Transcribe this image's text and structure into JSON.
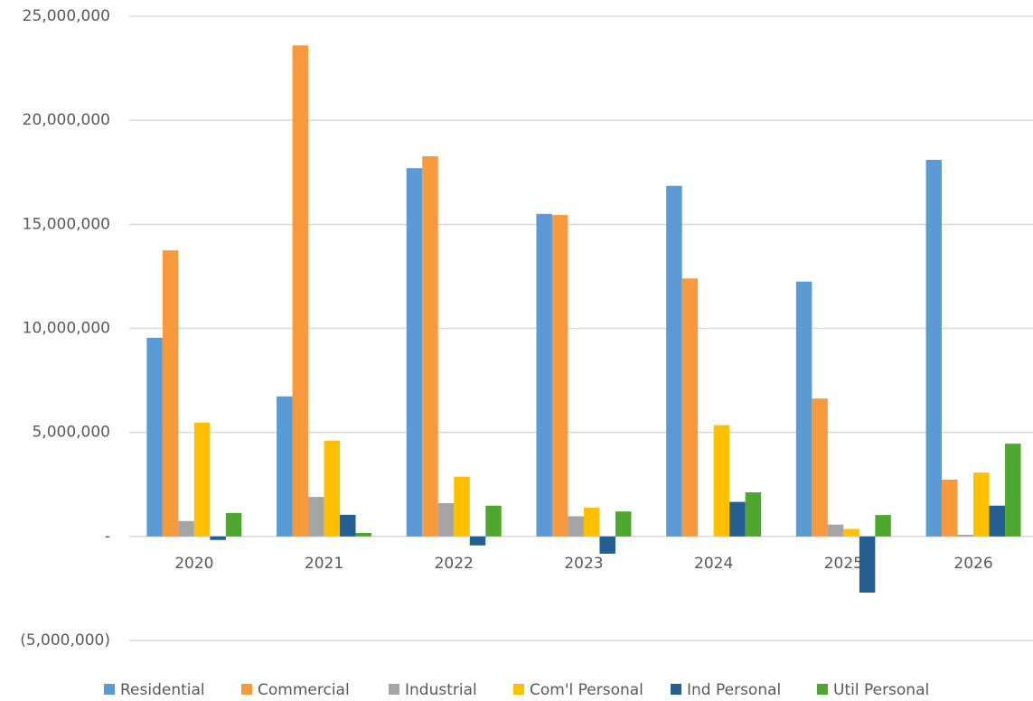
{
  "chart_data": {
    "type": "bar",
    "categories": [
      "2020",
      "2021",
      "2022",
      "2023",
      "2024",
      "2025",
      "2026"
    ],
    "series": [
      {
        "name": "Residential",
        "color": "#5b9bd5",
        "values": [
          9550000,
          6730000,
          17700000,
          15500000,
          16850000,
          12250000,
          18100000
        ]
      },
      {
        "name": "Commercial",
        "color": "#f79a3e",
        "values": [
          13750000,
          23600000,
          18270000,
          15450000,
          12400000,
          6630000,
          2730000
        ]
      },
      {
        "name": "Industrial",
        "color": "#a5a5a5",
        "values": [
          740000,
          1900000,
          1600000,
          970000,
          0,
          570000,
          80000
        ]
      },
      {
        "name": "Com'l Personal",
        "color": "#ffc000",
        "values": [
          5470000,
          4600000,
          2870000,
          1380000,
          5350000,
          360000,
          3070000
        ]
      },
      {
        "name": "Ind Personal",
        "color": "#255e91",
        "values": [
          -170000,
          1040000,
          -430000,
          -830000,
          1660000,
          -2700000,
          1480000
        ]
      },
      {
        "name": "Util Personal",
        "color": "#4ea72e",
        "values": [
          1130000,
          170000,
          1480000,
          1200000,
          2120000,
          1030000,
          4460000
        ]
      }
    ],
    "ylim": [
      -5000000,
      25000000
    ],
    "yticks": [
      {
        "value": -5000000,
        "label": "(5,000,000)"
      },
      {
        "value": 0,
        "label": "-"
      },
      {
        "value": 5000000,
        "label": "5,000,000"
      },
      {
        "value": 10000000,
        "label": "10,000,000"
      },
      {
        "value": 15000000,
        "label": "15,000,000"
      },
      {
        "value": 20000000,
        "label": "20,000,000"
      },
      {
        "value": 25000000,
        "label": "25,000,000"
      }
    ],
    "grid": true,
    "legend": "bottom"
  }
}
